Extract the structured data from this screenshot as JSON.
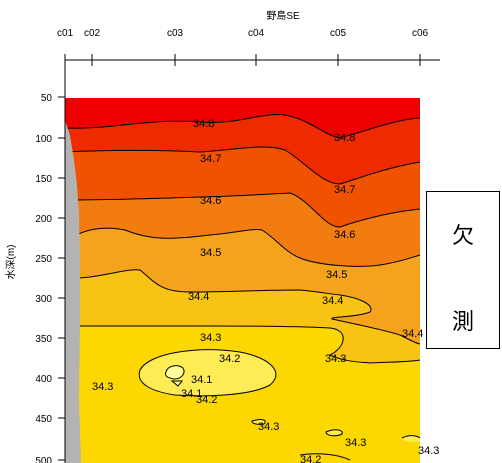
{
  "chart_data": {
    "type": "contour",
    "title": "野島SE",
    "ylabel": "水深(m)",
    "ylim": [
      500,
      30
    ],
    "stations": [
      "c01",
      "c02",
      "c03",
      "c04",
      "c05",
      "c06"
    ],
    "y_ticks": [
      50,
      100,
      150,
      200,
      250,
      300,
      350,
      400,
      450,
      500
    ],
    "contour_levels": [
      34.1,
      34.2,
      34.3,
      34.4,
      34.5,
      34.6,
      34.7,
      34.8
    ],
    "contour_labels": [
      {
        "text": "34.8",
        "x": "c03",
        "depth": 110
      },
      {
        "text": "34.8",
        "x": "c05",
        "depth": 115
      },
      {
        "text": "34.7",
        "x": "c03",
        "depth": 145
      },
      {
        "text": "34.7",
        "x": "c05",
        "depth": 175
      },
      {
        "text": "34.6",
        "x": "c03",
        "depth": 195
      },
      {
        "text": "34.6",
        "x": "c05",
        "depth": 220
      },
      {
        "text": "34.5",
        "x": "c03",
        "depth": 250
      },
      {
        "text": "34.5",
        "x": "c05",
        "depth": 265
      },
      {
        "text": "34.4",
        "x": "c03",
        "depth": 295
      },
      {
        "text": "34.4",
        "x": "c05",
        "depth": 300
      },
      {
        "text": "34.4",
        "x": "c06",
        "depth": 340
      },
      {
        "text": "34.3",
        "x": "c03",
        "depth": 345
      },
      {
        "text": "34.3",
        "x": "c05",
        "depth": 370
      },
      {
        "text": "34.2",
        "x": "c03",
        "depth": 365
      },
      {
        "text": "34.1",
        "x": "c03",
        "depth": 390
      },
      {
        "text": "34.1",
        "x": "c03",
        "depth": 405
      },
      {
        "text": "34.2",
        "x": "c03",
        "depth": 425
      },
      {
        "text": "34.3",
        "x": "c01",
        "depth": 395
      },
      {
        "text": "34.3",
        "x": "c04",
        "depth": 455
      },
      {
        "text": "34.3",
        "x": "c05",
        "depth": 475
      },
      {
        "text": "34.3",
        "x": "c06",
        "depth": 485
      },
      {
        "text": "34.2",
        "x": "c04",
        "depth": 500
      }
    ],
    "colors": {
      "34.8+": "#ee0000",
      "34.7-34.8": "#ee2a00",
      "34.6-34.7": "#f05200",
      "34.5-34.6": "#f27c0f",
      "34.4-34.5": "#f5a21c",
      "34.3-34.4": "#f8c314",
      "34.2-34.3": "#fdd800",
      "34.1-34.2": "#ffec55",
      "34.0-34.1": "#ffff99",
      "bottom": "#b3b3b3"
    },
    "missing_data_label": [
      "欠",
      "測"
    ]
  }
}
